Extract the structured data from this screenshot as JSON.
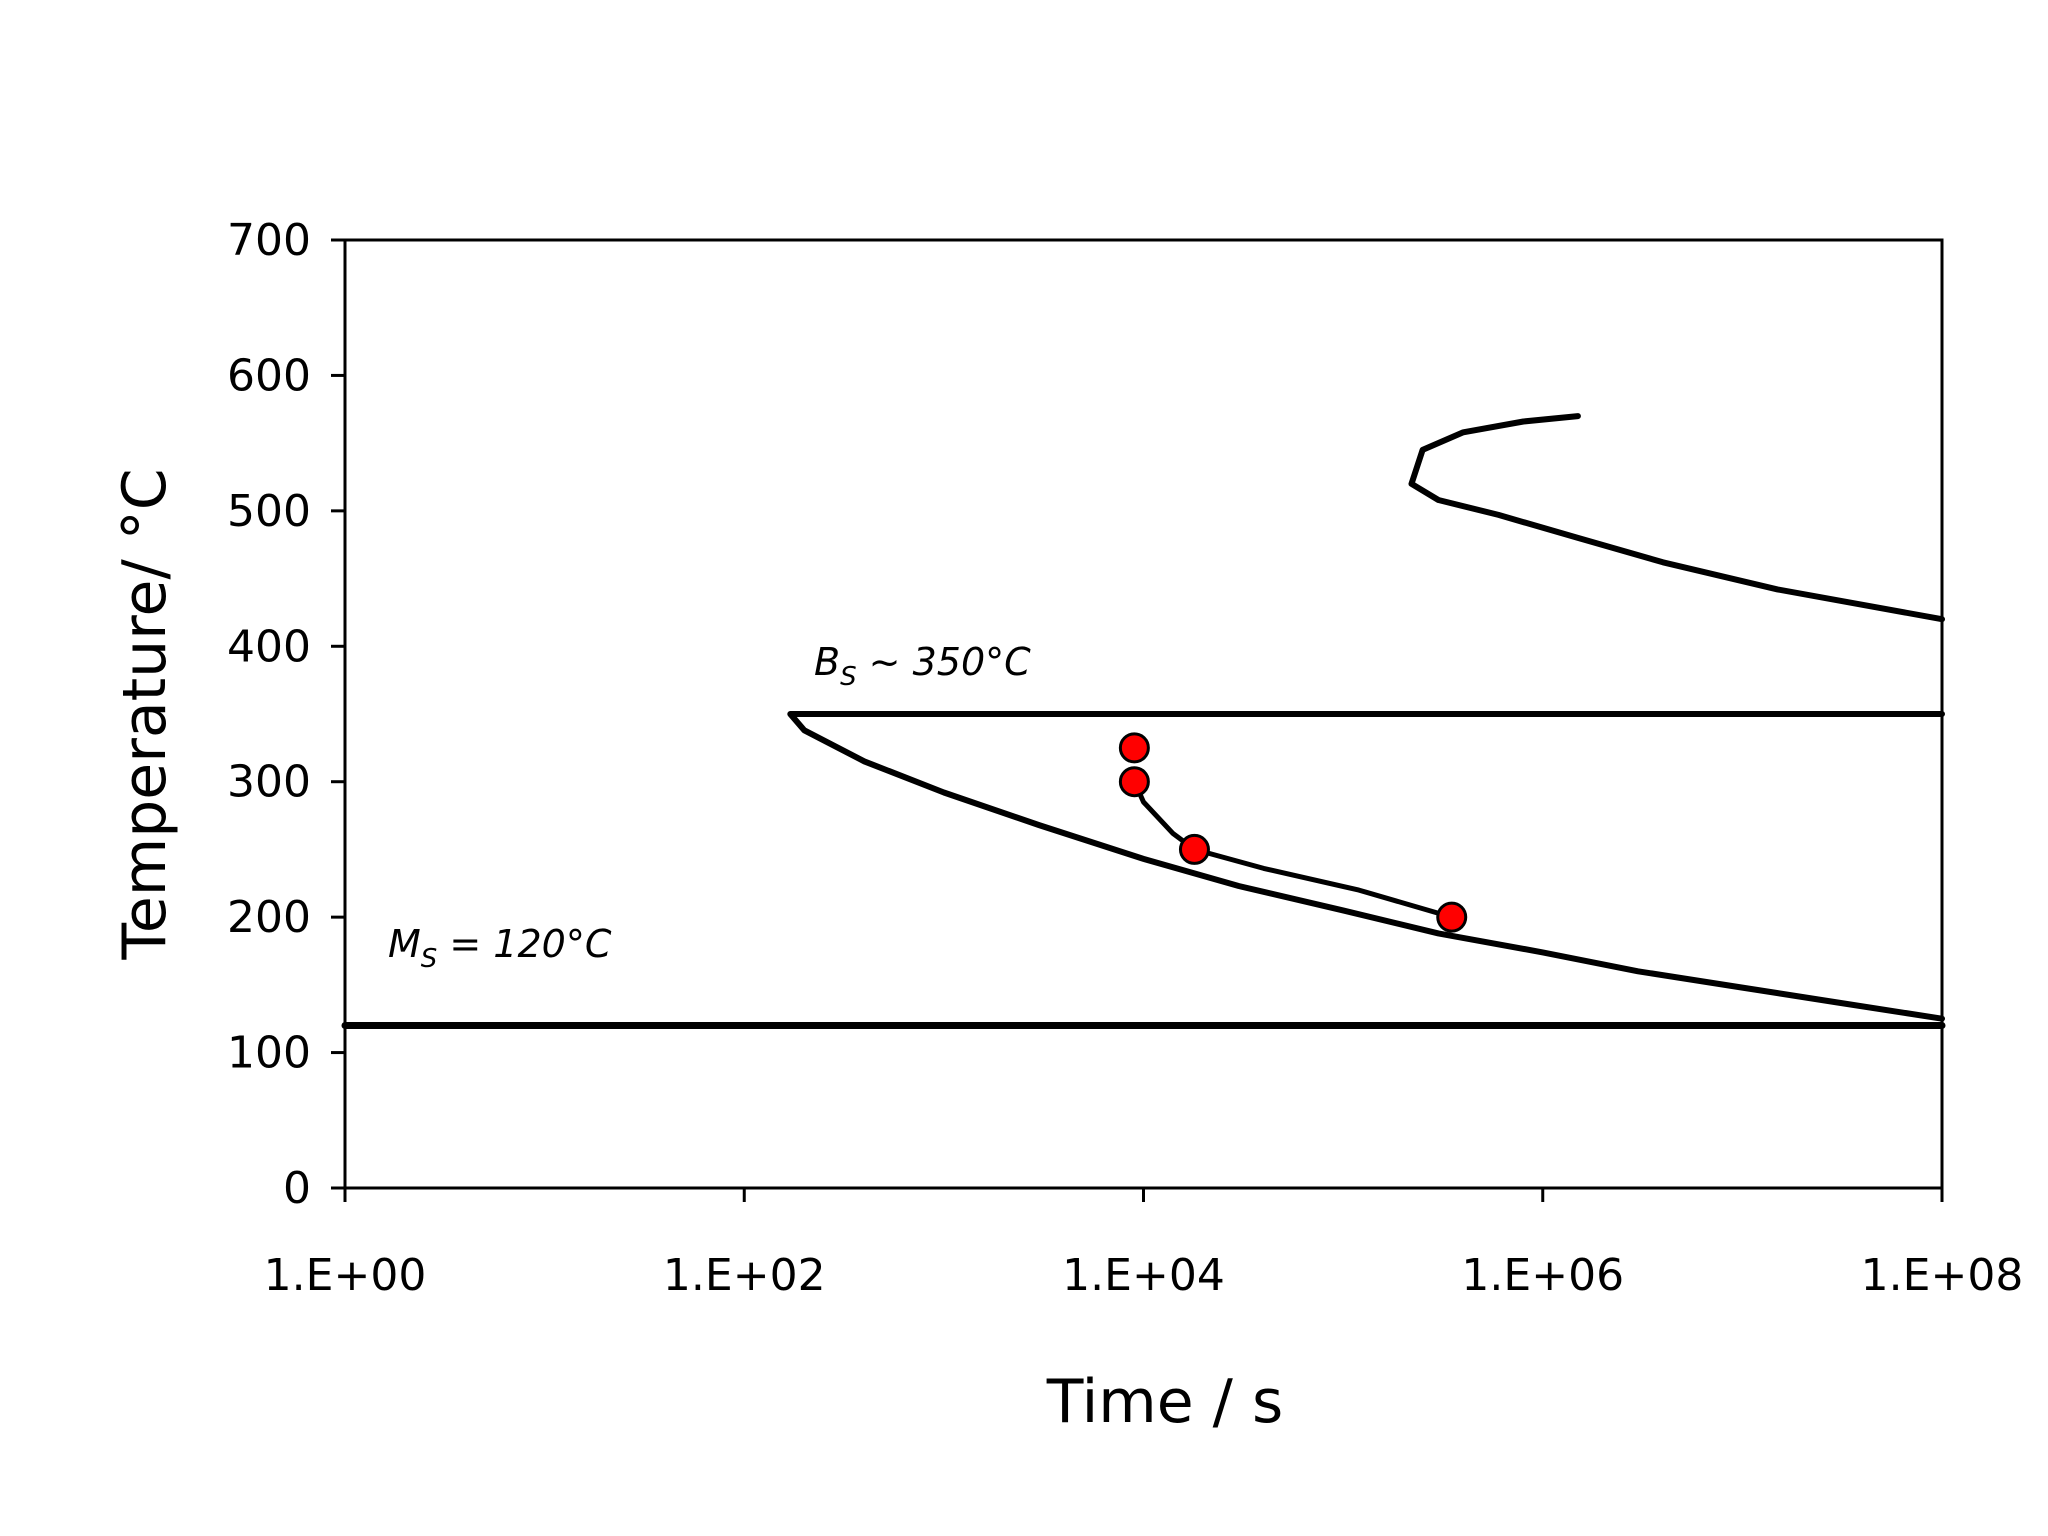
{
  "chart_data": {
    "type": "line",
    "xlabel": "Time / s",
    "ylabel": "Temperature/ °C",
    "x_scale": "log",
    "xlim": [
      1,
      100000000
    ],
    "ylim": [
      0,
      700
    ],
    "x_tick_labels": [
      "1.E+00",
      "1.E+02",
      "1.E+04",
      "1.E+06",
      "1.E+08"
    ],
    "x_tick_values": [
      1,
      100,
      10000,
      1000000,
      100000000
    ],
    "y_tick_labels": [
      "0",
      "100",
      "200",
      "300",
      "400",
      "500",
      "600",
      "700"
    ],
    "y_tick_values": [
      0,
      100,
      200,
      300,
      400,
      500,
      600,
      700
    ],
    "grid": false,
    "legend": "none",
    "annotations": [
      {
        "main": "B",
        "sub": "S",
        "rest": " ~ 350°C"
      },
      {
        "main": "M",
        "sub": "S",
        "rest": " = 120°C"
      }
    ],
    "series": [
      {
        "role": "upper C-curve",
        "color": "#000000",
        "x": [
          1500000,
          800000,
          400000,
          250000,
          220000,
          300000,
          600000,
          1500000,
          4000000,
          15000000,
          100000000
        ],
        "y": [
          570,
          566,
          558,
          545,
          520,
          508,
          497,
          480,
          462,
          442,
          420
        ]
      },
      {
        "role": "lower C-curve",
        "color": "#000000",
        "x": [
          200000000,
          240,
          170,
          200,
          400,
          1000,
          3000,
          10000,
          30000,
          100000,
          300000,
          1000000,
          3000000,
          10000000,
          30000000,
          100000000
        ],
        "y": [
          350,
          350,
          350,
          338,
          315,
          292,
          268,
          243,
          223,
          205,
          188,
          174,
          160,
          148,
          137,
          125
        ]
      },
      {
        "role": "Ms line",
        "color": "#000000",
        "x": [
          1,
          100000000
        ],
        "y": [
          120,
          120
        ]
      },
      {
        "role": "measured points",
        "color": "#000000",
        "marker_color": "#ff0000",
        "x": [
          9000,
          9000,
          18000,
          350000
        ],
        "y": [
          325,
          300,
          250,
          200
        ],
        "line_x": [
          9000,
          10000,
          14000,
          18000,
          40000,
          120000,
          350000
        ],
        "line_y": [
          300,
          285,
          262,
          250,
          236,
          220,
          200
        ]
      }
    ]
  }
}
